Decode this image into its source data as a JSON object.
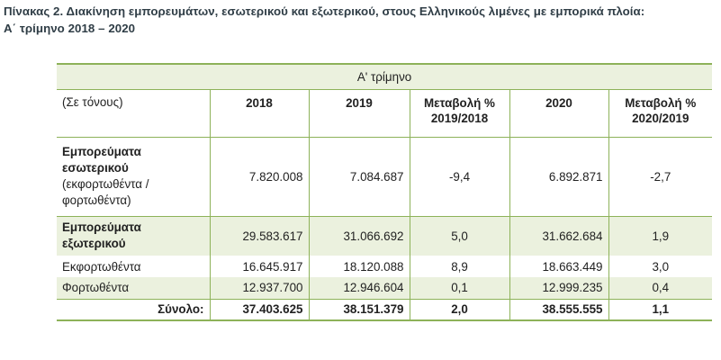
{
  "title": {
    "line1": "Πίνακας 2. Διακίνηση εμπορευμάτων, εσωτερικού και εξωτερικού, στους Ελληνικούς λιμένες με εμπορικά πλοία:",
    "line2": "Α΄ τρίμηνο 2018 – 2020"
  },
  "table": {
    "group_header": "Α' τρίμηνο",
    "unit_label": "(Σε τόνους)",
    "col_2018": "2018",
    "col_2019": "2019",
    "col_change1_a": "Μεταβολή %",
    "col_change1_b": "2019/2018",
    "col_2020": "2020",
    "col_change2_a": "Μεταβολή %",
    "col_change2_b": "2020/2019",
    "rows": [
      {
        "label_bold_1": "Εμπορεύματα",
        "label_bold_2": "εσωτερικού",
        "label_sub_1": "(εκφορτωθέντα /",
        "label_sub_2": "φορτωθέντα)",
        "v2018": "7.820.008",
        "v2019": "7.084.687",
        "ch1": "-9,4",
        "v2020": "6.892.871",
        "ch2": "-2,7"
      },
      {
        "label_bold_1": "Εμπορεύματα",
        "label_bold_2": "εξωτερικού",
        "v2018": "29.583.617",
        "v2019": "31.066.692",
        "ch1": "5,0",
        "v2020": "31.662.684",
        "ch2": "1,9"
      },
      {
        "label": "Εκφορτωθέντα",
        "v2018": "16.645.917",
        "v2019": "18.120.088",
        "ch1": "8,9",
        "v2020": "18.663.449",
        "ch2": "3,0"
      },
      {
        "label": "Φορτωθέντα",
        "v2018": "12.937.700",
        "v2019": "12.946.604",
        "ch1": "0,1",
        "v2020": "12.999.235",
        "ch2": "0,4"
      }
    ],
    "total": {
      "label": "Σύνολο:",
      "v2018": "37.403.625",
      "v2019": "38.151.379",
      "ch1": "2,0",
      "v2020": "38.555.555",
      "ch2": "1,1"
    }
  }
}
